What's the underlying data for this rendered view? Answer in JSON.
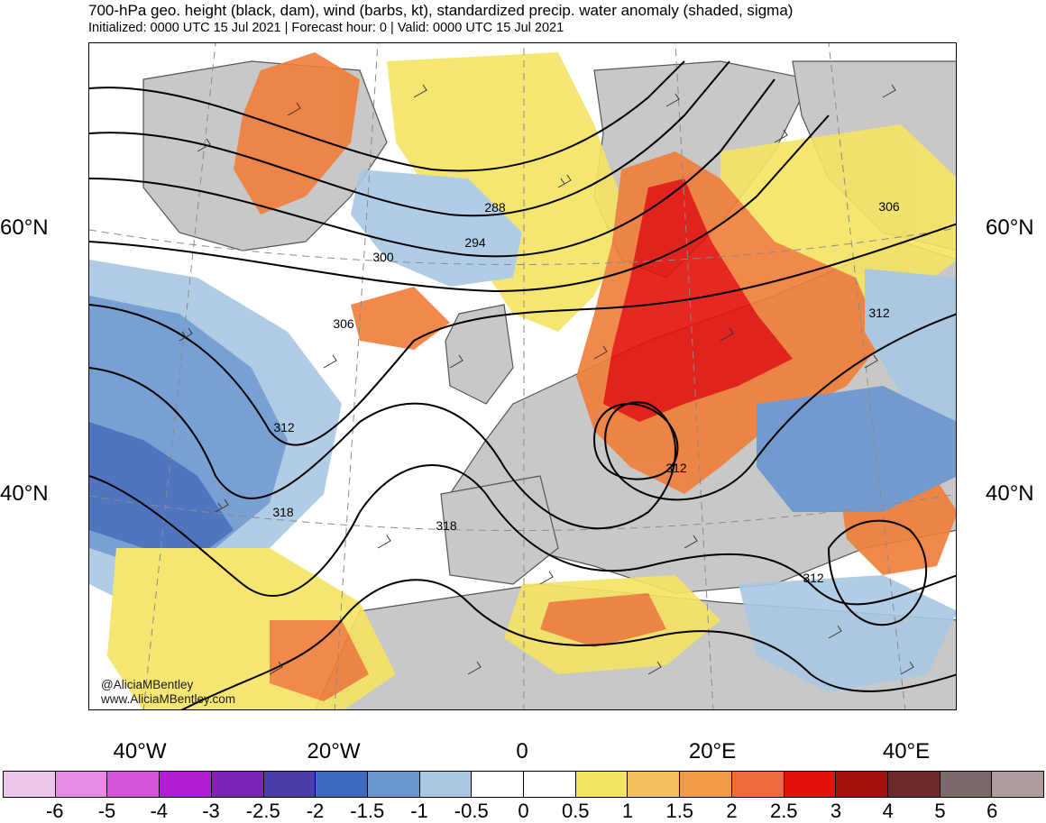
{
  "header": {
    "title": "700-hPa geo. height (black, dam), wind (barbs, kt), standardized precip. water anomaly (shaded, sigma)",
    "subtitle": "Initialized: 0000 UTC 15 Jul 2021 | Forecast hour: 0 | Valid: 0000 UTC 15 Jul 2021"
  },
  "map": {
    "lat_labels": {
      "lat60_left": "60°N",
      "lat60_right": "60°N",
      "lat40_left": "40°N",
      "lat40_right": "40°N"
    },
    "lon_labels": [
      "40°W",
      "20°W",
      "0",
      "20°E",
      "40°E"
    ],
    "contour_labels": [
      "288",
      "294",
      "300",
      "306",
      "312",
      "318",
      "318",
      "312",
      "312",
      "306",
      "312"
    ],
    "credits": {
      "handle": "@AliciaMBentley",
      "website": "www.AliciaMBentley.com"
    },
    "colors": {
      "land": "#c8c8c8",
      "ocean_base": "#ffffff",
      "contour": "#000000",
      "graticule": "#8a8a8a",
      "coast": "#555555"
    },
    "anomaly_blobs": [
      {
        "level": "1",
        "color": "#f5e463"
      },
      {
        "level": "2",
        "color": "#f07d38"
      },
      {
        "level": "3",
        "color": "#e3120b"
      },
      {
        "level": "-1",
        "color": "#a9c8e4"
      },
      {
        "level": "-1.5",
        "color": "#6a96cf"
      },
      {
        "level": "-2",
        "color": "#3c67b8"
      }
    ]
  },
  "colorbar": {
    "colors": [
      "#eac6ea",
      "#e68ae6",
      "#d652d8",
      "#b01fd4",
      "#7c24b8",
      "#4a3da8",
      "#3e6bbf",
      "#6a96cf",
      "#a9c8e4",
      "#ffffff",
      "#ffffff",
      "#f5e463",
      "#f2bf5a",
      "#f09a43",
      "#ee6a3b",
      "#e3120b",
      "#a5100c",
      "#6e2a2a",
      "#7a6a6a",
      "#b09c9c"
    ],
    "ticks": [
      "-6",
      "-5",
      "-4",
      "-3",
      "-2.5",
      "-2",
      "-1.5",
      "-1",
      "-0.5",
      "0",
      "0.5",
      "1",
      "1.5",
      "2",
      "2.5",
      "3",
      "4",
      "5",
      "6"
    ]
  }
}
